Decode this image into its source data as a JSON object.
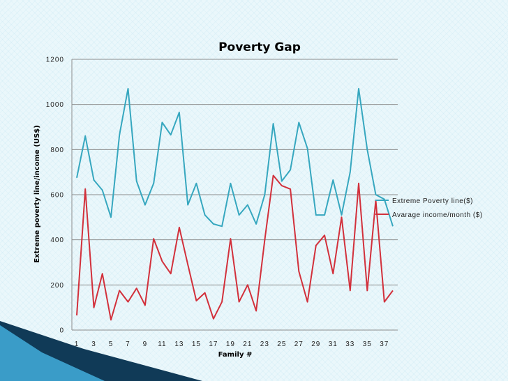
{
  "colors": {
    "poverty_line": "#36a7bf",
    "income": "#d2303b",
    "grid": "#8c8c8c",
    "decor_dark": "#103a57",
    "decor_light": "#3a9cc8"
  },
  "chart_data": {
    "type": "line",
    "title": "Poverty Gap",
    "xlabel": "Family #",
    "ylabel": "Extreme poverty line/income (US$)",
    "x": [
      1,
      2,
      3,
      4,
      5,
      6,
      7,
      8,
      9,
      10,
      11,
      12,
      13,
      14,
      15,
      16,
      17,
      18,
      19,
      20,
      21,
      22,
      23,
      24,
      25,
      26,
      27,
      28,
      29,
      30,
      31,
      32,
      33,
      34,
      35,
      36,
      37,
      38
    ],
    "x_tick_labels": [
      "1",
      "3",
      "5",
      "7",
      "9",
      "11",
      "13",
      "15",
      "17",
      "19",
      "21",
      "23",
      "25",
      "27",
      "29",
      "31",
      "33",
      "35",
      "37"
    ],
    "ylim": [
      0,
      1200
    ],
    "y_ticks": [
      0,
      200,
      400,
      600,
      800,
      1000,
      1200
    ],
    "grid": true,
    "legend_position": "right",
    "series": [
      {
        "name": "Extreme Poverty line($)",
        "color": "#36a7bf",
        "values": [
          675,
          860,
          665,
          620,
          500,
          865,
          1070,
          660,
          555,
          650,
          920,
          865,
          965,
          555,
          650,
          510,
          470,
          460,
          650,
          510,
          555,
          470,
          600,
          915,
          660,
          710,
          920,
          805,
          510,
          510,
          665,
          510,
          700,
          1070,
          800,
          600,
          580,
          460
        ]
      },
      {
        "name": "Avarage income/month ($)",
        "color": "#d2303b",
        "values": [
          65,
          625,
          100,
          250,
          45,
          175,
          125,
          185,
          110,
          405,
          305,
          250,
          455,
          290,
          130,
          165,
          50,
          125,
          405,
          125,
          200,
          85,
          400,
          685,
          640,
          625,
          260,
          125,
          375,
          420,
          250,
          500,
          175,
          650,
          175,
          575,
          125,
          175
        ]
      }
    ]
  }
}
